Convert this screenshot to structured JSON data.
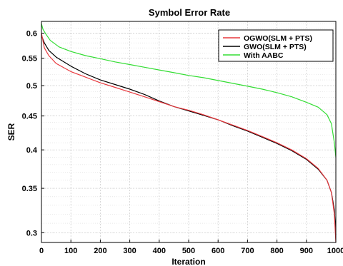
{
  "chart_data": {
    "type": "line",
    "title": "Symbol Error Rate",
    "xlabel": "Iteration",
    "ylabel": "SER",
    "xlim": [
      0,
      1000
    ],
    "ylim": [
      0.29,
      0.625
    ],
    "yscale": "log",
    "grid": "on (major and minor)",
    "legend_placement": "top-right",
    "x_ticks": [
      "0",
      "100",
      "200",
      "300",
      "400",
      "500",
      "600",
      "700",
      "800",
      "900",
      "1000"
    ],
    "y_ticks": [
      "0.3",
      "0.35",
      "0.4",
      "0.45",
      "0.5",
      "0.55",
      "0.6"
    ],
    "x_tick_values": [
      0,
      100,
      200,
      300,
      400,
      500,
      600,
      700,
      800,
      900,
      1000
    ],
    "y_tick_values": [
      0.3,
      0.35,
      0.4,
      0.45,
      0.5,
      0.55,
      0.6
    ],
    "series": [
      {
        "name": "OGWO(SLM + PTS)",
        "color": "#e8383d",
        "x": [
          0,
          10,
          25,
          50,
          100,
          150,
          200,
          250,
          300,
          350,
          400,
          450,
          500,
          550,
          600,
          650,
          700,
          750,
          800,
          850,
          900,
          940,
          970,
          985,
          995,
          1000
        ],
        "y": [
          0.6,
          0.57,
          0.555,
          0.54,
          0.525,
          0.515,
          0.505,
          0.497,
          0.489,
          0.481,
          0.473,
          0.465,
          0.459,
          0.452,
          0.444,
          0.436,
          0.428,
          0.419,
          0.41,
          0.4,
          0.388,
          0.375,
          0.36,
          0.345,
          0.32,
          0.29
        ]
      },
      {
        "name": "GWO(SLM + PTS)",
        "color": "#000000",
        "x": [
          0,
          10,
          25,
          50,
          100,
          150,
          200,
          250,
          300,
          350,
          400,
          450,
          500,
          550,
          600,
          650,
          700,
          750,
          800,
          850,
          900,
          940,
          970,
          985,
          995,
          1000
        ],
        "y": [
          0.595,
          0.58,
          0.565,
          0.552,
          0.535,
          0.521,
          0.51,
          0.502,
          0.494,
          0.485,
          0.474,
          0.465,
          0.458,
          0.451,
          0.444,
          0.435,
          0.427,
          0.418,
          0.409,
          0.399,
          0.387,
          0.374,
          0.36,
          0.345,
          0.325,
          0.298
        ]
      },
      {
        "name": "With AABC",
        "color": "#33dd33",
        "x": [
          0,
          5,
          15,
          30,
          60,
          100,
          150,
          200,
          250,
          300,
          350,
          400,
          450,
          500,
          550,
          600,
          650,
          700,
          750,
          800,
          850,
          900,
          940,
          970,
          985,
          995,
          1000
        ],
        "y": [
          0.62,
          0.608,
          0.598,
          0.585,
          0.572,
          0.563,
          0.555,
          0.549,
          0.543,
          0.538,
          0.533,
          0.528,
          0.523,
          0.518,
          0.514,
          0.509,
          0.504,
          0.499,
          0.494,
          0.488,
          0.481,
          0.472,
          0.464,
          0.452,
          0.438,
          0.41,
          0.39
        ]
      }
    ]
  }
}
